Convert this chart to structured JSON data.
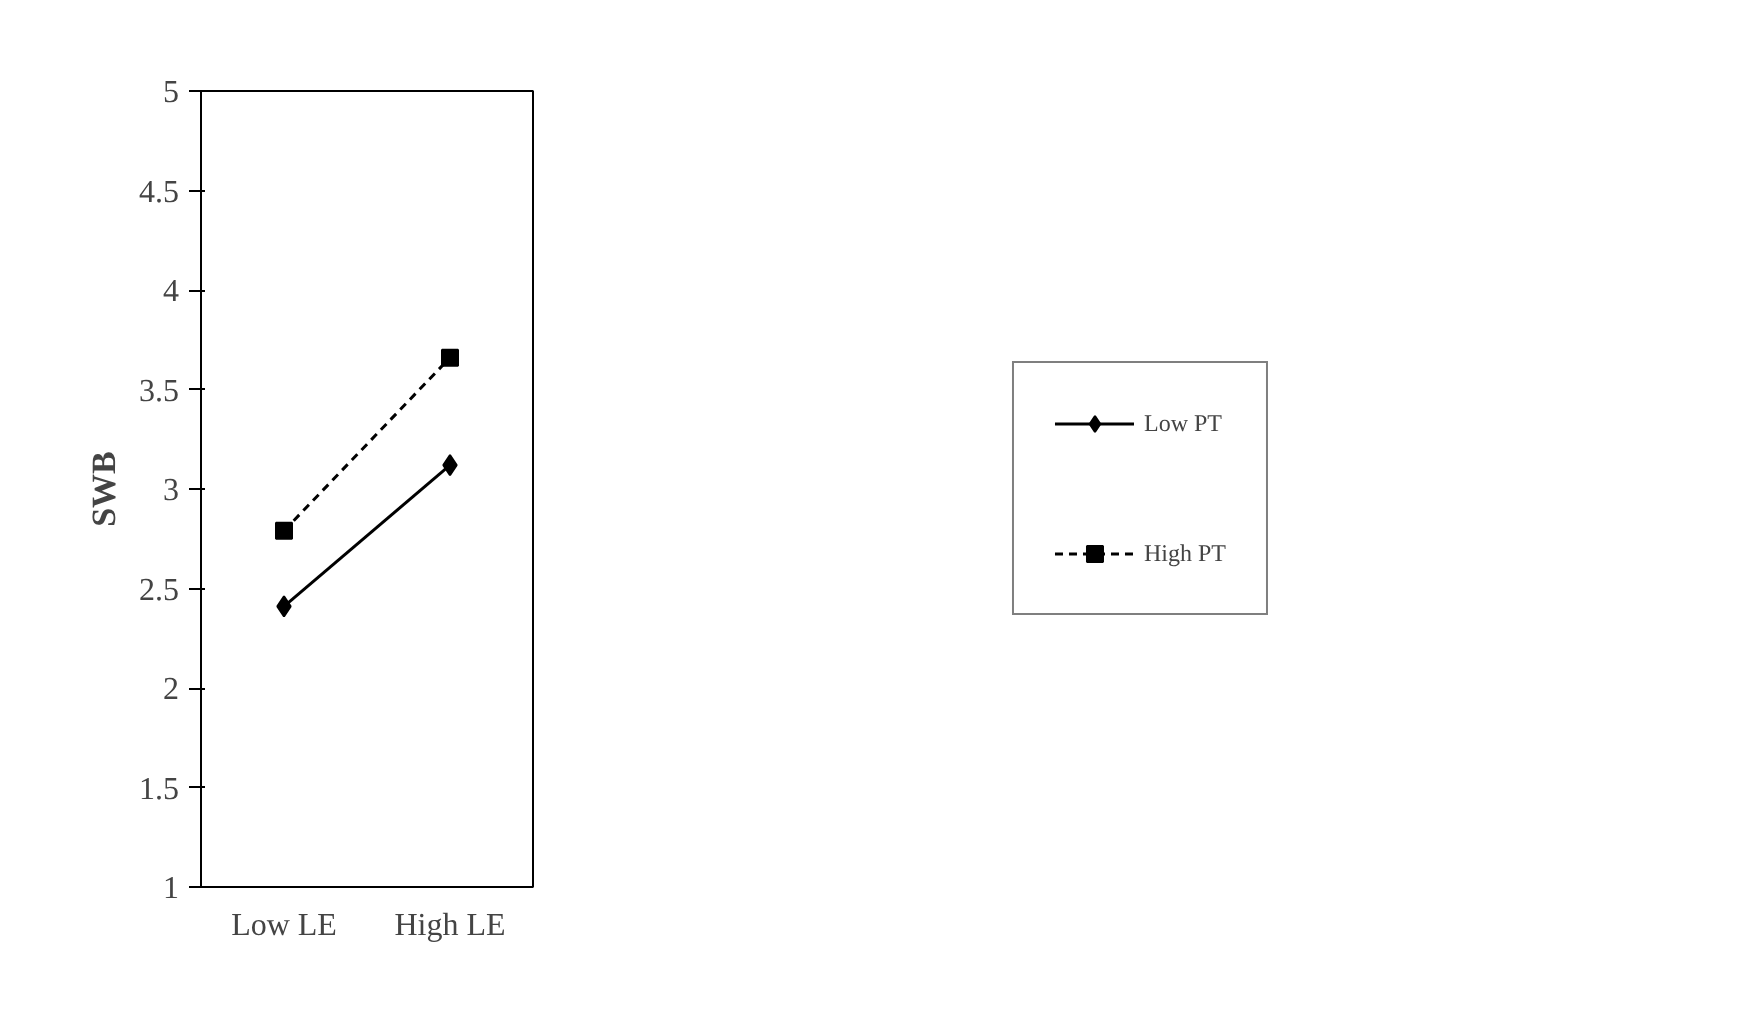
{
  "chart_data": {
    "type": "line",
    "ylabel": "SWB",
    "categories": [
      "Low LE",
      "High LE"
    ],
    "series": [
      {
        "name": "Low PT",
        "color": "#000000",
        "values": [
          2.41,
          3.12
        ],
        "marker": "diamond",
        "line_style": "solid"
      },
      {
        "name": "High PT",
        "color": "#000000",
        "values": [
          2.79,
          3.66
        ],
        "marker": "square",
        "line_style": "dashed"
      }
    ],
    "ylim": [
      1,
      5
    ],
    "yticks": [
      1,
      1.5,
      2,
      2.5,
      3,
      3.5,
      4,
      4.5,
      5
    ],
    "grid": false,
    "legend": "right"
  }
}
